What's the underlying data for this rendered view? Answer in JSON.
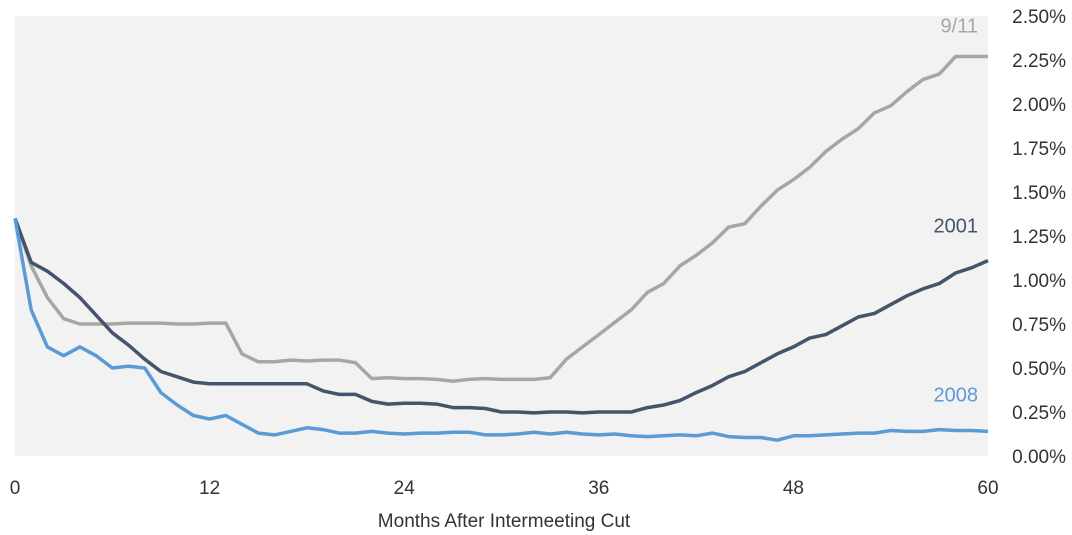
{
  "chart_data": {
    "type": "line",
    "title": "",
    "xlabel": "Months After Intermeeting Cut",
    "ylabel": "",
    "xlim": [
      0,
      60
    ],
    "ylim": [
      0,
      2.5
    ],
    "x_ticks": [
      0,
      12,
      24,
      36,
      48,
      60
    ],
    "y_ticks": [
      0,
      0.25,
      0.5,
      0.75,
      1.0,
      1.25,
      1.5,
      1.75,
      2.0,
      2.25,
      2.5
    ],
    "y_tick_labels": [
      "0.00%",
      "0.25%",
      "0.50%",
      "0.75%",
      "1.00%",
      "1.25%",
      "1.50%",
      "1.75%",
      "2.00%",
      "2.25%",
      "2.50%"
    ],
    "y_axis_side": "right",
    "grid": false,
    "legend": "none (series labelled at line ends)",
    "plot_background": "#f2f2f2",
    "series": [
      {
        "name": "9/11",
        "color": "#a6a6a6",
        "x": [
          0,
          1,
          2,
          3,
          4,
          5,
          6,
          7,
          8,
          9,
          10,
          11,
          12,
          13,
          14,
          15,
          16,
          17,
          18,
          19,
          20,
          21,
          22,
          23,
          24,
          25,
          26,
          27,
          28,
          29,
          30,
          31,
          32,
          33,
          34,
          35,
          36,
          37,
          38,
          39,
          40,
          41,
          42,
          43,
          44,
          45,
          46,
          47,
          48,
          49,
          50,
          51,
          52,
          53,
          54,
          55,
          56,
          57,
          58,
          59,
          60
        ],
        "values": [
          1.35,
          1.08,
          0.9,
          0.78,
          0.75,
          0.75,
          0.75,
          0.755,
          0.755,
          0.755,
          0.75,
          0.75,
          0.755,
          0.755,
          0.58,
          0.535,
          0.535,
          0.545,
          0.54,
          0.545,
          0.545,
          0.53,
          0.44,
          0.445,
          0.44,
          0.44,
          0.435,
          0.425,
          0.435,
          0.44,
          0.435,
          0.435,
          0.435,
          0.445,
          0.55,
          0.62,
          0.69,
          0.76,
          0.83,
          0.93,
          0.98,
          1.08,
          1.14,
          1.21,
          1.3,
          1.32,
          1.42,
          1.51,
          1.57,
          1.64,
          1.73,
          1.8,
          1.86,
          1.95,
          1.99,
          2.07,
          2.14,
          2.17,
          2.27,
          2.27,
          2.27
        ]
      },
      {
        "name": "2001",
        "color": "#44546a",
        "x": [
          0,
          1,
          2,
          3,
          4,
          5,
          6,
          7,
          8,
          9,
          10,
          11,
          12,
          13,
          14,
          15,
          16,
          17,
          18,
          19,
          20,
          21,
          22,
          23,
          24,
          25,
          26,
          27,
          28,
          29,
          30,
          31,
          32,
          33,
          34,
          35,
          36,
          37,
          38,
          39,
          40,
          41,
          42,
          43,
          44,
          45,
          46,
          47,
          48,
          49,
          50,
          51,
          52,
          53,
          54,
          55,
          56,
          57,
          58,
          59,
          60
        ],
        "values": [
          1.35,
          1.1,
          1.05,
          0.98,
          0.9,
          0.8,
          0.7,
          0.63,
          0.55,
          0.48,
          0.45,
          0.42,
          0.41,
          0.41,
          0.41,
          0.41,
          0.41,
          0.41,
          0.41,
          0.37,
          0.35,
          0.35,
          0.31,
          0.295,
          0.3,
          0.3,
          0.295,
          0.275,
          0.275,
          0.27,
          0.25,
          0.25,
          0.245,
          0.25,
          0.25,
          0.245,
          0.25,
          0.25,
          0.25,
          0.275,
          0.29,
          0.315,
          0.36,
          0.4,
          0.45,
          0.48,
          0.53,
          0.58,
          0.62,
          0.67,
          0.69,
          0.74,
          0.79,
          0.81,
          0.86,
          0.91,
          0.95,
          0.98,
          1.04,
          1.07,
          1.11
        ]
      },
      {
        "name": "2008",
        "color": "#5b9bd5",
        "x": [
          0,
          1,
          2,
          3,
          4,
          5,
          6,
          7,
          8,
          9,
          10,
          11,
          12,
          13,
          14,
          15,
          16,
          17,
          18,
          19,
          20,
          21,
          22,
          23,
          24,
          25,
          26,
          27,
          28,
          29,
          30,
          31,
          32,
          33,
          34,
          35,
          36,
          37,
          38,
          39,
          40,
          41,
          42,
          43,
          44,
          45,
          46,
          47,
          48,
          49,
          50,
          51,
          52,
          53,
          54,
          55,
          56,
          57,
          58,
          59,
          60
        ],
        "values": [
          1.35,
          0.83,
          0.62,
          0.57,
          0.62,
          0.57,
          0.5,
          0.51,
          0.5,
          0.36,
          0.29,
          0.23,
          0.21,
          0.23,
          0.18,
          0.13,
          0.12,
          0.14,
          0.16,
          0.15,
          0.13,
          0.13,
          0.14,
          0.13,
          0.125,
          0.13,
          0.13,
          0.135,
          0.135,
          0.12,
          0.12,
          0.125,
          0.135,
          0.125,
          0.135,
          0.125,
          0.12,
          0.125,
          0.115,
          0.11,
          0.115,
          0.12,
          0.115,
          0.13,
          0.11,
          0.105,
          0.105,
          0.09,
          0.115,
          0.115,
          0.12,
          0.125,
          0.13,
          0.13,
          0.145,
          0.14,
          0.14,
          0.15,
          0.145,
          0.145,
          0.14
        ]
      }
    ]
  }
}
